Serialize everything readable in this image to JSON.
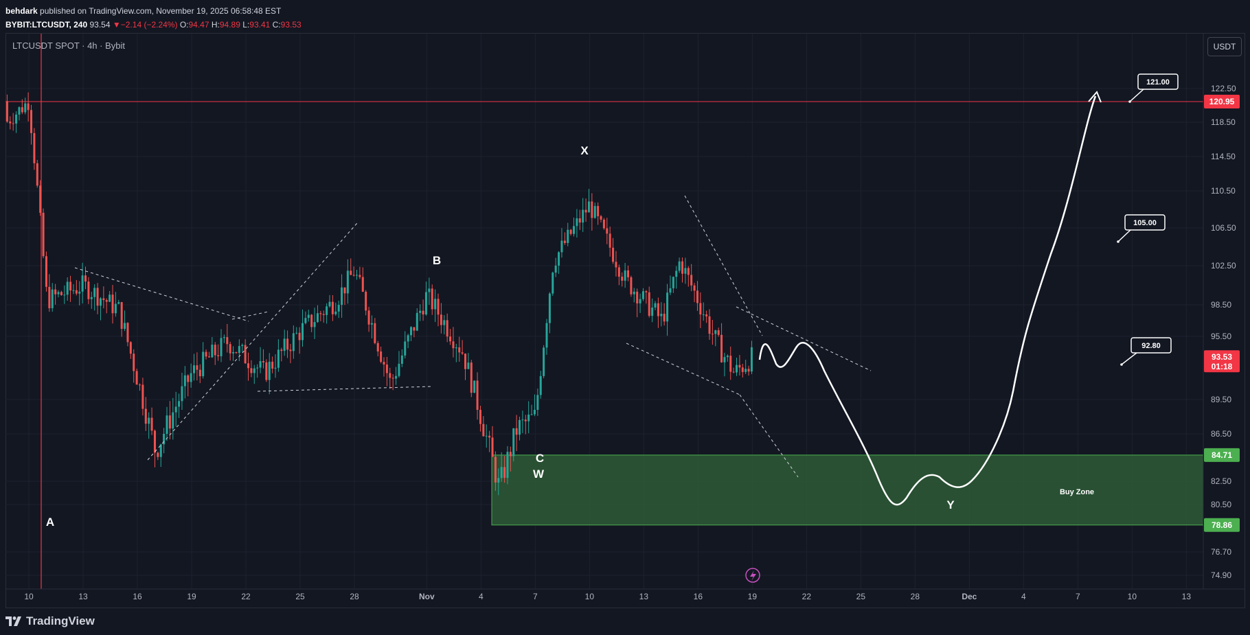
{
  "header": {
    "author": "behdark",
    "published": "published on TradingView.com, November 19, 2025 06:58:48 EST",
    "symbol": "BYBIT:LTCUSDT, 240",
    "last": "93.54",
    "change": "−2.14 (−2.24%)",
    "o_label": "O:",
    "o": "94.47",
    "h_label": "H:",
    "h": "94.89",
    "l_label": "L:",
    "l": "93.41",
    "c_label": "C:",
    "c": "93.53"
  },
  "legend": "LTCUSDT SPOT · 4h · Bybit",
  "currency_button": "USDT",
  "footer": {
    "brand": "TradingView",
    "logo_mark": "17"
  },
  "colors": {
    "background": "#131722",
    "up": "#26a69a",
    "down": "#ef5350",
    "resistance": "#f23645",
    "zone": "#2e5a36",
    "zone_border": "#4caf50"
  },
  "chart_data": {
    "type": "candlestick",
    "x_ticks": [
      "10",
      "13",
      "16",
      "19",
      "22",
      "25",
      "28",
      "Nov",
      "4",
      "7",
      "10",
      "13",
      "16",
      "19",
      "22",
      "25",
      "28",
      "Dec",
      "4",
      "7",
      "10",
      "13"
    ],
    "y_ticks": [
      "122.50",
      "118.50",
      "114.50",
      "110.50",
      "106.50",
      "102.50",
      "98.50",
      "95.50",
      "89.50",
      "86.50",
      "82.50",
      "80.50",
      "76.70",
      "74.90"
    ],
    "ylim": [
      73.5,
      128
    ],
    "last_price_label": "93.53",
    "countdown": "01:18",
    "horizontal_line": {
      "price": 120.95,
      "label": "120.95"
    },
    "buy_zone": {
      "top": 84.71,
      "bottom": 78.86,
      "top_label": "84.71",
      "bottom_label": "78.86",
      "text": "Buy Zone"
    },
    "wave_labels": [
      "A",
      "B",
      "C",
      "W",
      "X",
      "Y"
    ],
    "target_labels": [
      "121.00",
      "105.00",
      "92.80"
    ],
    "series_approx": [
      {
        "date": "Oct 10",
        "close": 121
      },
      {
        "date": "Oct 11",
        "close": 99
      },
      {
        "date": "Oct 13",
        "close": 100.5
      },
      {
        "date": "Oct 15",
        "close": 98
      },
      {
        "date": "Oct 17",
        "close": 85
      },
      {
        "date": "Oct 19",
        "close": 92
      },
      {
        "date": "Oct 21",
        "close": 95
      },
      {
        "date": "Oct 23",
        "close": 92
      },
      {
        "date": "Oct 25",
        "close": 96
      },
      {
        "date": "Oct 27",
        "close": 99
      },
      {
        "date": "Oct 28",
        "close": 102
      },
      {
        "date": "Oct 30",
        "close": 91
      },
      {
        "date": "Nov 1",
        "close": 99.5
      },
      {
        "date": "Nov 3",
        "close": 94
      },
      {
        "date": "Nov 5",
        "close": 82
      },
      {
        "date": "Nov 6",
        "close": 87
      },
      {
        "date": "Nov 7",
        "close": 88
      },
      {
        "date": "Nov 8",
        "close": 103
      },
      {
        "date": "Nov 10",
        "close": 109
      },
      {
        "date": "Nov 12",
        "close": 101
      },
      {
        "date": "Nov 14",
        "close": 97
      },
      {
        "date": "Nov 15",
        "close": 103
      },
      {
        "date": "Nov 17",
        "close": 95
      },
      {
        "date": "Nov 18",
        "close": 92
      },
      {
        "date": "Nov 19",
        "close": 93.5
      }
    ]
  }
}
